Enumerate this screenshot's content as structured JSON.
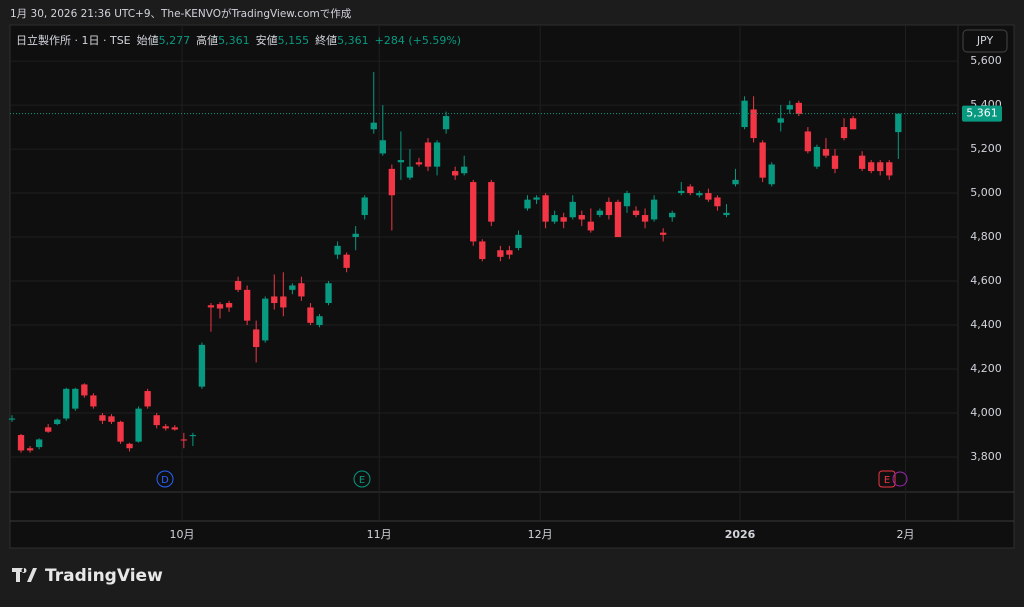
{
  "chart_data": {
    "type": "candlestick",
    "caption": "1月 30, 2026 21:36 UTC+9、The-KENVOがTradingView.comで作成",
    "legend": {
      "symbol": "日立製作所 · 1日 · TSE",
      "open_label": "始値",
      "open": {
        "value": 5277,
        "label": "5,277"
      },
      "high_label": "高値",
      "high": {
        "value": 5361,
        "label": "5,361"
      },
      "low_label": "安値",
      "low": {
        "value": 5155,
        "label": "5,155"
      },
      "close_label": "終値",
      "close": {
        "value": 5361,
        "label": "5,361"
      },
      "change": "+284 (+5.59%)"
    },
    "currency": "JPY",
    "logo": "TradingView",
    "up_color": "#089981",
    "down_color": "#f23645",
    "last_price": {
      "value": 5361,
      "label": "5,361"
    },
    "events": [
      "D",
      "E",
      "E"
    ],
    "xlim": [
      -0.22,
      104.6
    ],
    "xticks": [
      {
        "value": 18.8,
        "label": "10月"
      },
      {
        "value": 40.6,
        "label": "11月"
      },
      {
        "value": 58.4,
        "label": "12月"
      },
      {
        "value": 80.5,
        "label": "2026"
      },
      {
        "value": 98.8,
        "label": "2月"
      }
    ],
    "ylim": [
      3641,
      5764
    ],
    "yticks": [
      {
        "value": 3800,
        "label": "3,800"
      },
      {
        "value": 4000,
        "label": "4,000"
      },
      {
        "value": 4200,
        "label": "4,200"
      },
      {
        "value": 4400,
        "label": "4,400"
      },
      {
        "value": 4600,
        "label": "4,600"
      },
      {
        "value": 4800,
        "label": "4,800"
      },
      {
        "value": 5000,
        "label": "5,000"
      },
      {
        "value": 5200,
        "label": "5,200"
      },
      {
        "value": 5400,
        "label": "5,400"
      },
      {
        "value": 5600,
        "label": "5,600"
      }
    ],
    "grid": true,
    "candles": [
      [
        3970,
        3990,
        3960,
        3975
      ],
      [
        3900,
        3905,
        3820,
        3830
      ],
      [
        3840,
        3850,
        3820,
        3830
      ],
      [
        3845,
        3885,
        3835,
        3880
      ],
      [
        3935,
        3950,
        3910,
        3915
      ],
      [
        3950,
        3975,
        3945,
        3970
      ],
      [
        3975,
        4115,
        3965,
        4110
      ],
      [
        4020,
        4115,
        4010,
        4110
      ],
      [
        4130,
        4135,
        4070,
        4080
      ],
      [
        4080,
        4090,
        4020,
        4030
      ],
      [
        3990,
        4000,
        3950,
        3965
      ],
      [
        3985,
        3995,
        3950,
        3960
      ],
      [
        3960,
        3965,
        3860,
        3870
      ],
      [
        3860,
        3865,
        3825,
        3840
      ],
      [
        3870,
        4030,
        3865,
        4020
      ],
      [
        4100,
        4110,
        4020,
        4030
      ],
      [
        3990,
        4000,
        3930,
        3945
      ],
      [
        3940,
        3950,
        3920,
        3930
      ],
      [
        3935,
        3945,
        3920,
        3925
      ],
      [
        3880,
        3910,
        3840,
        3875
      ],
      [
        3895,
        3910,
        3850,
        3900
      ],
      [
        4120,
        4320,
        4110,
        4310
      ],
      [
        4490,
        4500,
        4370,
        4480
      ],
      [
        4495,
        4505,
        4430,
        4475
      ],
      [
        4500,
        4510,
        4460,
        4480
      ],
      [
        4600,
        4620,
        4550,
        4560
      ],
      [
        4560,
        4580,
        4400,
        4420
      ],
      [
        4380,
        4420,
        4230,
        4300
      ],
      [
        4330,
        4530,
        4320,
        4520
      ],
      [
        4530,
        4630,
        4470,
        4500
      ],
      [
        4530,
        4640,
        4440,
        4480
      ],
      [
        4560,
        4590,
        4540,
        4580
      ],
      [
        4590,
        4620,
        4510,
        4530
      ],
      [
        4480,
        4500,
        4400,
        4410
      ],
      [
        4400,
        4450,
        4390,
        4440
      ],
      [
        4500,
        4600,
        4490,
        4590
      ],
      [
        4720,
        4780,
        4700,
        4760
      ],
      [
        4720,
        4730,
        4640,
        4660
      ],
      [
        4800,
        4850,
        4740,
        4815
      ],
      [
        4900,
        4990,
        4880,
        4980
      ],
      [
        5290,
        5550,
        5270,
        5320
      ],
      [
        5180,
        5400,
        5170,
        5240
      ],
      [
        5110,
        5130,
        4830,
        4990
      ],
      [
        5140,
        5280,
        5060,
        5150
      ],
      [
        5070,
        5200,
        5060,
        5120
      ],
      [
        5140,
        5160,
        5120,
        5130
      ],
      [
        5230,
        5250,
        5100,
        5120
      ],
      [
        5120,
        5240,
        5080,
        5230
      ],
      [
        5290,
        5370,
        5270,
        5350
      ],
      [
        5100,
        5120,
        5060,
        5080
      ],
      [
        5090,
        5170,
        5080,
        5120
      ],
      [
        5050,
        5060,
        4760,
        4780
      ],
      [
        4780,
        4790,
        4690,
        4700
      ],
      [
        5050,
        5060,
        4850,
        4870
      ],
      [
        4740,
        4760,
        4690,
        4710
      ],
      [
        4740,
        4760,
        4700,
        4720
      ],
      [
        4750,
        4830,
        4740,
        4810
      ],
      [
        4930,
        4990,
        4920,
        4970
      ],
      [
        4970,
        4990,
        4950,
        4980
      ],
      [
        4990,
        5000,
        4840,
        4870
      ],
      [
        4870,
        4920,
        4860,
        4900
      ],
      [
        4890,
        4910,
        4840,
        4870
      ],
      [
        4890,
        4990,
        4880,
        4960
      ],
      [
        4900,
        4920,
        4850,
        4880
      ],
      [
        4870,
        4930,
        4820,
        4830
      ],
      [
        4900,
        4930,
        4890,
        4920
      ],
      [
        4960,
        4980,
        4880,
        4900
      ],
      [
        4960,
        4970,
        4800,
        4800
      ],
      [
        4940,
        5010,
        4910,
        5000
      ],
      [
        4920,
        4940,
        4890,
        4900
      ],
      [
        4900,
        4930,
        4840,
        4870
      ],
      [
        4880,
        4990,
        4870,
        4970
      ],
      [
        4820,
        4840,
        4780,
        4810
      ],
      [
        4890,
        4920,
        4870,
        4910
      ],
      [
        5000,
        5050,
        4990,
        5010
      ],
      [
        5030,
        5040,
        4990,
        5000
      ],
      [
        4990,
        5010,
        4980,
        5000
      ],
      [
        5000,
        5020,
        4960,
        4970
      ],
      [
        4980,
        4990,
        4920,
        4940
      ],
      [
        4900,
        4950,
        4890,
        4910
      ],
      [
        5040,
        5110,
        5030,
        5060
      ],
      [
        5300,
        5440,
        5290,
        5420
      ],
      [
        5380,
        5440,
        5230,
        5250
      ],
      [
        5230,
        5240,
        5050,
        5070
      ],
      [
        5040,
        5140,
        5030,
        5130
      ],
      [
        5320,
        5400,
        5280,
        5340
      ],
      [
        5380,
        5420,
        5360,
        5400
      ],
      [
        5410,
        5420,
        5350,
        5360
      ],
      [
        5280,
        5300,
        5180,
        5190
      ],
      [
        5120,
        5220,
        5110,
        5210
      ],
      [
        5200,
        5250,
        5160,
        5170
      ],
      [
        5170,
        5200,
        5090,
        5110
      ],
      [
        5300,
        5340,
        5240,
        5250
      ],
      [
        5340,
        5350,
        5290,
        5290
      ],
      [
        5170,
        5190,
        5100,
        5110
      ],
      [
        5140,
        5150,
        5090,
        5100
      ],
      [
        5140,
        5150,
        5080,
        5100
      ],
      [
        5140,
        5150,
        5060,
        5080
      ],
      [
        5277,
        5361,
        5155,
        5361
      ]
    ]
  }
}
